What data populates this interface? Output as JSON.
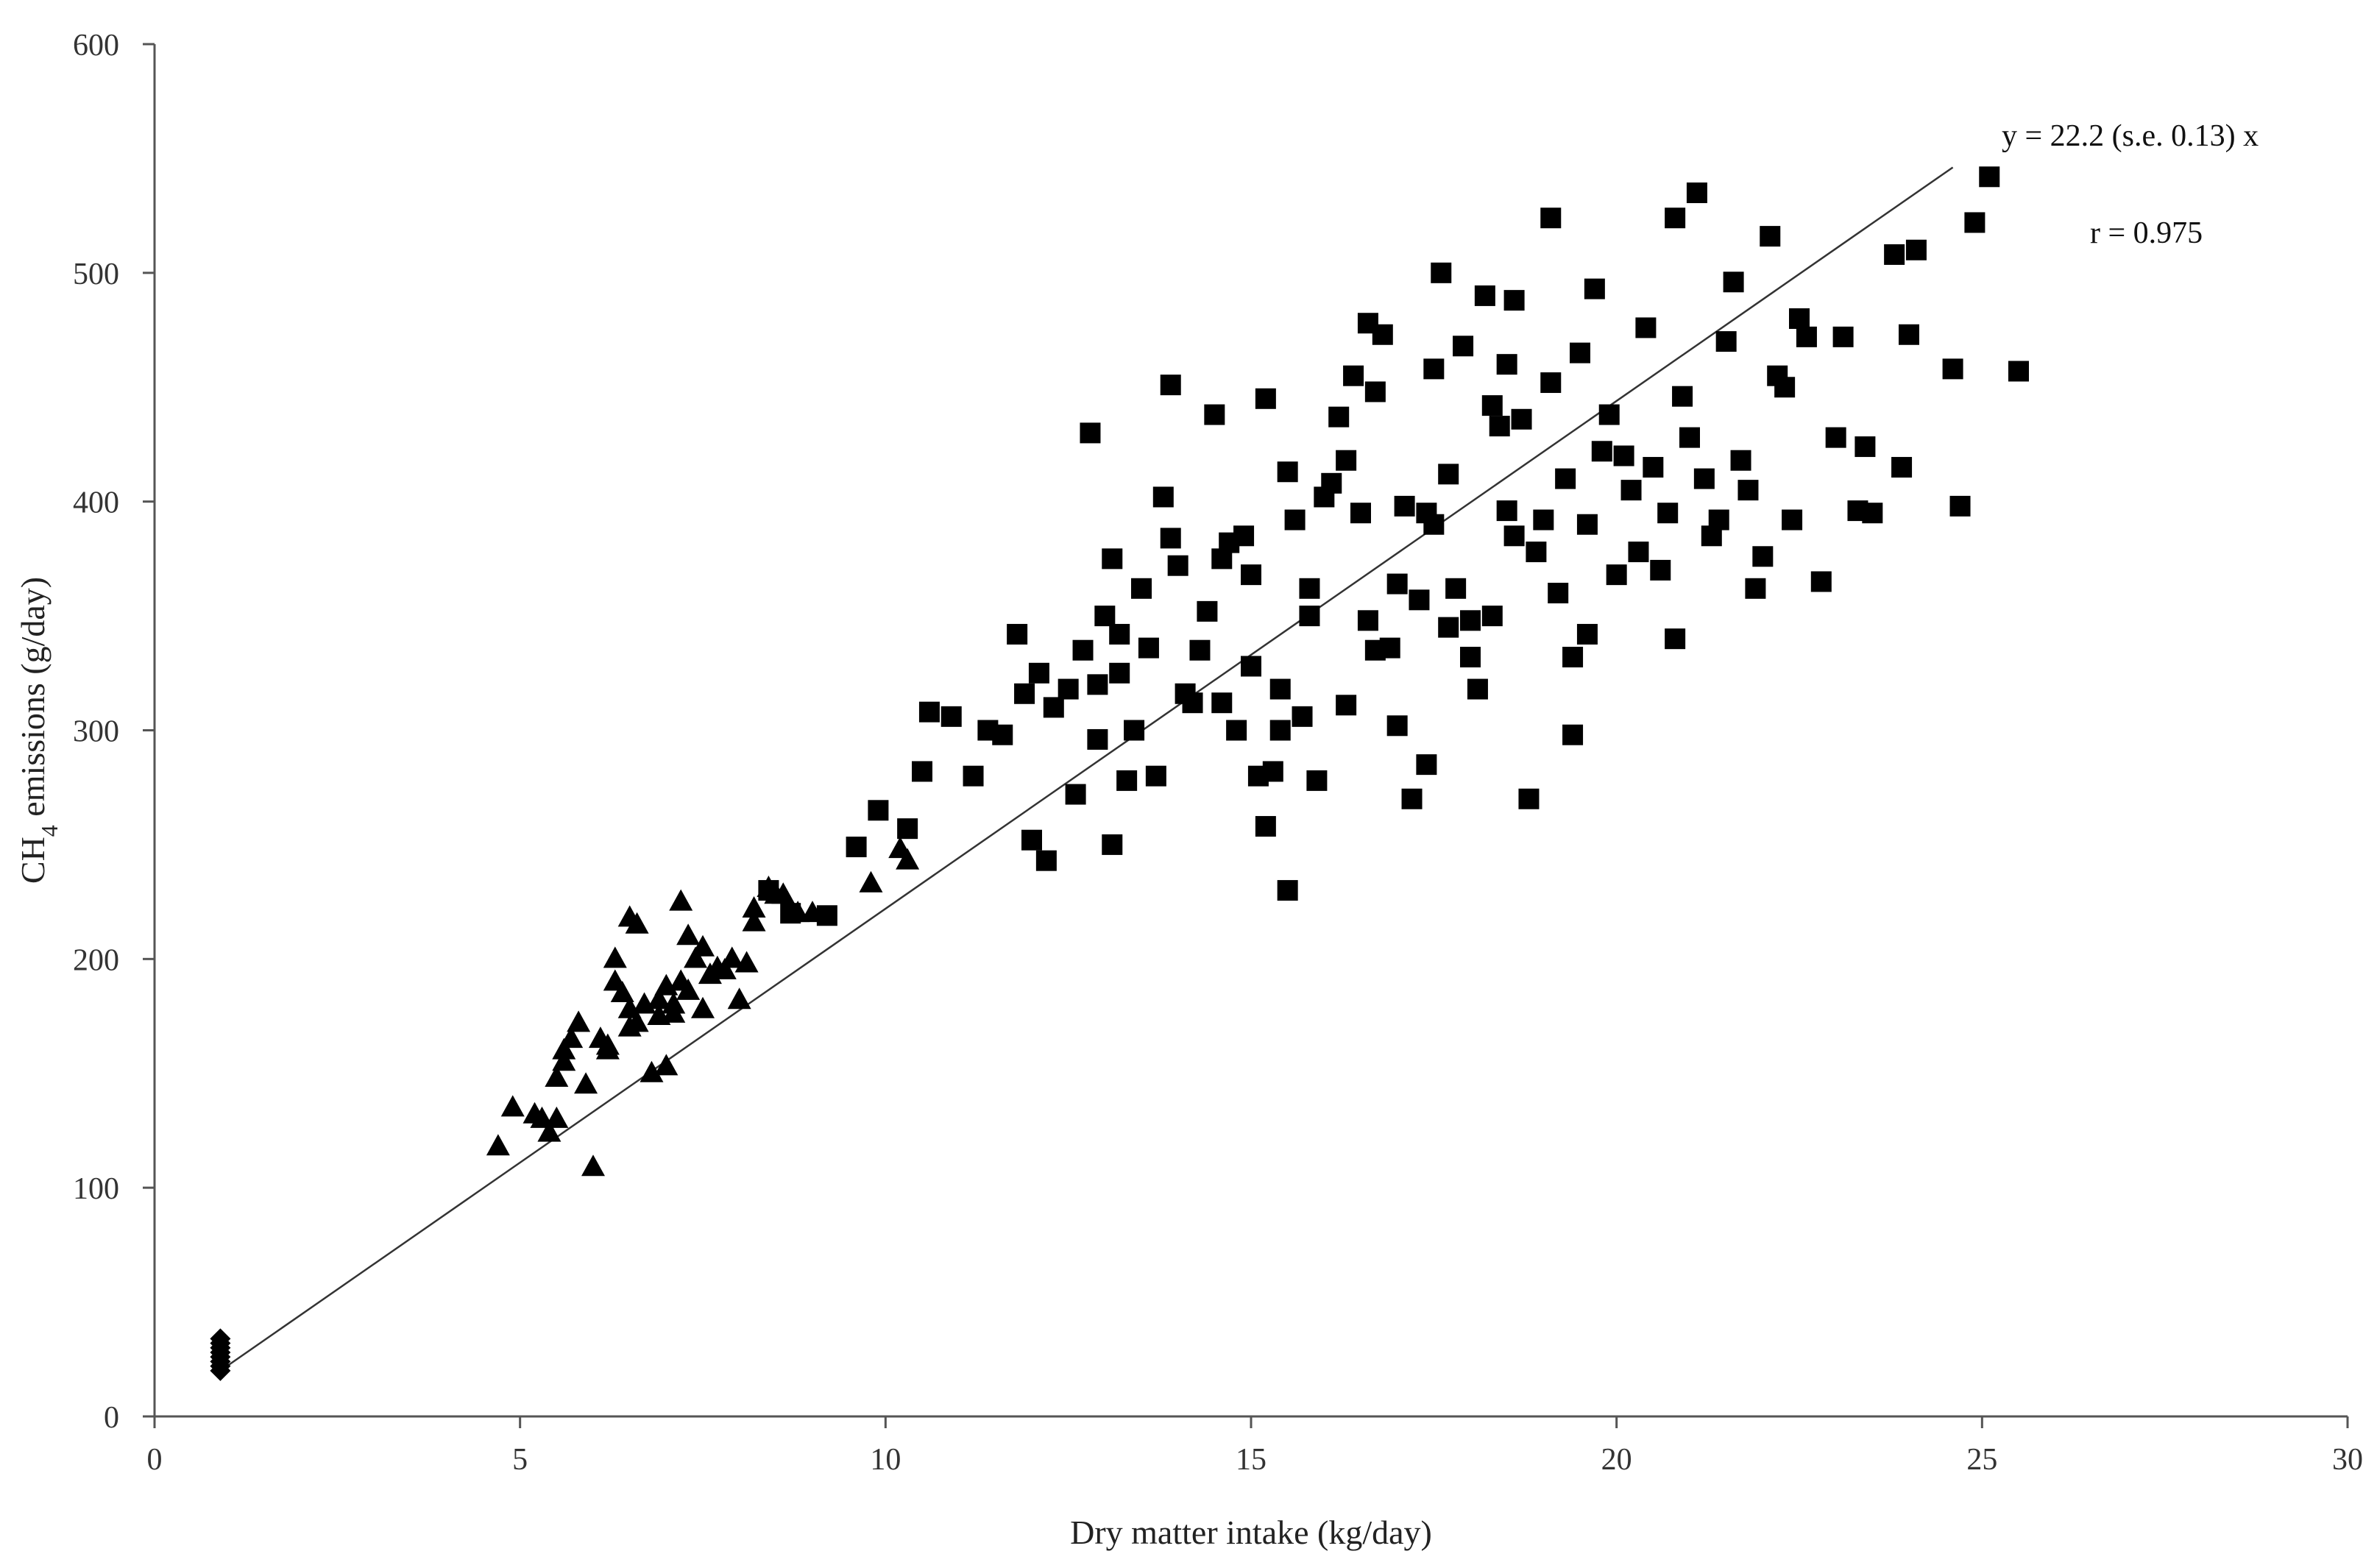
{
  "chart_data": {
    "type": "scatter",
    "xlabel": "Dry matter intake (kg/day)",
    "ylabel_parts": {
      "pre": "CH",
      "sub": "4",
      "post": " emissions (g/day)"
    },
    "xlim": [
      0,
      30
    ],
    "ylim": [
      0,
      600
    ],
    "xticks": [
      0,
      5,
      10,
      15,
      20,
      25,
      30
    ],
    "yticks": [
      0,
      100,
      200,
      300,
      400,
      500,
      600
    ],
    "grid": false,
    "legend": "none",
    "annotations": {
      "equation": "y = 22.2 (s.e. 0.13) x",
      "r": "r = 0.975"
    },
    "fit_line": {
      "slope": 22.2,
      "x_range": [
        0.9,
        24.6
      ]
    },
    "series": [
      {
        "marker": "diamond",
        "points": [
          [
            0.9,
            20
          ],
          [
            0.9,
            22
          ],
          [
            0.9,
            24
          ],
          [
            0.9,
            26
          ],
          [
            0.9,
            28
          ],
          [
            0.9,
            30
          ],
          [
            0.9,
            32
          ],
          [
            0.9,
            34
          ]
        ]
      },
      {
        "marker": "triangle",
        "points": [
          [
            4.7,
            118
          ],
          [
            4.9,
            135
          ],
          [
            5.2,
            132
          ],
          [
            5.4,
            124
          ],
          [
            5.5,
            148
          ],
          [
            5.5,
            130
          ],
          [
            5.6,
            160
          ],
          [
            5.7,
            165
          ],
          [
            5.8,
            172
          ],
          [
            5.9,
            145
          ],
          [
            6.0,
            109
          ],
          [
            6.1,
            165
          ],
          [
            6.2,
            162
          ],
          [
            6.3,
            200
          ],
          [
            6.3,
            190
          ],
          [
            6.4,
            185
          ],
          [
            6.5,
            218
          ],
          [
            6.5,
            178
          ],
          [
            6.6,
            215
          ],
          [
            6.6,
            172
          ],
          [
            6.7,
            180
          ],
          [
            6.8,
            150
          ],
          [
            6.9,
            182
          ],
          [
            7.0,
            188
          ],
          [
            7.0,
            153
          ],
          [
            7.1,
            176
          ],
          [
            7.2,
            225
          ],
          [
            7.2,
            190
          ],
          [
            7.3,
            210
          ],
          [
            7.3,
            186
          ],
          [
            7.4,
            200
          ],
          [
            7.5,
            178
          ],
          [
            7.6,
            193
          ],
          [
            7.7,
            196
          ],
          [
            7.8,
            195
          ],
          [
            7.9,
            200
          ],
          [
            8.0,
            182
          ],
          [
            8.1,
            198
          ],
          [
            8.2,
            222
          ],
          [
            8.2,
            216
          ],
          [
            8.4,
            231
          ],
          [
            8.5,
            228
          ],
          [
            8.6,
            228
          ],
          [
            8.8,
            220
          ],
          [
            9.0,
            220
          ],
          [
            9.8,
            233
          ],
          [
            10.2,
            248
          ],
          [
            10.3,
            243
          ],
          [
            6.2,
            160
          ],
          [
            6.5,
            170
          ],
          [
            6.9,
            175
          ],
          [
            7.1,
            180
          ],
          [
            7.5,
            205
          ],
          [
            5.3,
            130
          ],
          [
            5.6,
            155
          ]
        ]
      },
      {
        "marker": "square",
        "points": [
          [
            8.4,
            230
          ],
          [
            8.7,
            220
          ],
          [
            9.2,
            219
          ],
          [
            9.6,
            249
          ],
          [
            9.9,
            265
          ],
          [
            10.3,
            257
          ],
          [
            10.5,
            282
          ],
          [
            10.6,
            308
          ],
          [
            10.9,
            306
          ],
          [
            11.2,
            280
          ],
          [
            11.4,
            300
          ],
          [
            11.6,
            298
          ],
          [
            11.8,
            342
          ],
          [
            11.9,
            316
          ],
          [
            12.0,
            252
          ],
          [
            12.1,
            325
          ],
          [
            12.2,
            243
          ],
          [
            12.3,
            310
          ],
          [
            12.5,
            318
          ],
          [
            12.6,
            272
          ],
          [
            12.7,
            335
          ],
          [
            12.8,
            430
          ],
          [
            12.9,
            320
          ],
          [
            12.9,
            296
          ],
          [
            13.0,
            350
          ],
          [
            13.1,
            375
          ],
          [
            13.1,
            250
          ],
          [
            13.2,
            342
          ],
          [
            13.3,
            278
          ],
          [
            13.4,
            300
          ],
          [
            13.5,
            362
          ],
          [
            13.6,
            336
          ],
          [
            13.7,
            280
          ],
          [
            13.8,
            402
          ],
          [
            13.9,
            384
          ],
          [
            13.9,
            451
          ],
          [
            14.0,
            372
          ],
          [
            14.1,
            316
          ],
          [
            14.2,
            312
          ],
          [
            14.3,
            335
          ],
          [
            14.4,
            352
          ],
          [
            14.5,
            438
          ],
          [
            14.6,
            312
          ],
          [
            14.7,
            382
          ],
          [
            14.8,
            300
          ],
          [
            14.9,
            385
          ],
          [
            15.0,
            368
          ],
          [
            15.0,
            328
          ],
          [
            15.1,
            280
          ],
          [
            15.2,
            258
          ],
          [
            15.2,
            445
          ],
          [
            15.3,
            282
          ],
          [
            15.4,
            318
          ],
          [
            15.4,
            300
          ],
          [
            15.5,
            230
          ],
          [
            15.5,
            413
          ],
          [
            15.6,
            392
          ],
          [
            15.7,
            306
          ],
          [
            15.8,
            362
          ],
          [
            15.9,
            278
          ],
          [
            16.0,
            402
          ],
          [
            16.1,
            408
          ],
          [
            16.2,
            437
          ],
          [
            16.3,
            418
          ],
          [
            16.3,
            311
          ],
          [
            16.4,
            455
          ],
          [
            16.5,
            395
          ],
          [
            16.6,
            478
          ],
          [
            16.6,
            348
          ],
          [
            16.7,
            448
          ],
          [
            16.8,
            473
          ],
          [
            16.9,
            336
          ],
          [
            17.0,
            364
          ],
          [
            17.0,
            302
          ],
          [
            17.1,
            398
          ],
          [
            17.2,
            270
          ],
          [
            17.3,
            357
          ],
          [
            17.4,
            285
          ],
          [
            17.5,
            458
          ],
          [
            17.5,
            390
          ],
          [
            17.6,
            500
          ],
          [
            17.7,
            412
          ],
          [
            17.7,
            345
          ],
          [
            17.8,
            362
          ],
          [
            17.9,
            468
          ],
          [
            18.0,
            348
          ],
          [
            18.0,
            332
          ],
          [
            18.1,
            318
          ],
          [
            18.2,
            490
          ],
          [
            18.3,
            442
          ],
          [
            18.3,
            350
          ],
          [
            18.4,
            433
          ],
          [
            18.5,
            396
          ],
          [
            18.5,
            460
          ],
          [
            18.6,
            488
          ],
          [
            18.7,
            436
          ],
          [
            18.8,
            270
          ],
          [
            18.9,
            378
          ],
          [
            19.0,
            392
          ],
          [
            19.1,
            524
          ],
          [
            19.1,
            452
          ],
          [
            19.2,
            360
          ],
          [
            19.3,
            410
          ],
          [
            19.4,
            332
          ],
          [
            19.4,
            298
          ],
          [
            19.5,
            465
          ],
          [
            19.6,
            390
          ],
          [
            19.6,
            342
          ],
          [
            19.7,
            493
          ],
          [
            19.8,
            422
          ],
          [
            19.9,
            438
          ],
          [
            20.0,
            368
          ],
          [
            20.1,
            420
          ],
          [
            20.2,
            405
          ],
          [
            20.3,
            378
          ],
          [
            20.4,
            476
          ],
          [
            20.5,
            415
          ],
          [
            20.6,
            370
          ],
          [
            20.7,
            395
          ],
          [
            20.8,
            340
          ],
          [
            20.8,
            524
          ],
          [
            20.9,
            446
          ],
          [
            21.0,
            428
          ],
          [
            21.1,
            535
          ],
          [
            21.2,
            410
          ],
          [
            21.3,
            385
          ],
          [
            21.4,
            392
          ],
          [
            21.5,
            470
          ],
          [
            21.6,
            496
          ],
          [
            21.7,
            418
          ],
          [
            21.8,
            405
          ],
          [
            21.9,
            362
          ],
          [
            22.0,
            376
          ],
          [
            22.1,
            516
          ],
          [
            22.2,
            455
          ],
          [
            22.3,
            450
          ],
          [
            22.4,
            392
          ],
          [
            22.5,
            480
          ],
          [
            22.6,
            472
          ],
          [
            22.8,
            365
          ],
          [
            23.0,
            428
          ],
          [
            23.1,
            472
          ],
          [
            23.3,
            396
          ],
          [
            23.4,
            424
          ],
          [
            23.5,
            395
          ],
          [
            23.8,
            508
          ],
          [
            23.9,
            415
          ],
          [
            24.0,
            473
          ],
          [
            24.1,
            510
          ],
          [
            24.6,
            458
          ],
          [
            24.7,
            398
          ],
          [
            24.9,
            522
          ],
          [
            25.1,
            542
          ],
          [
            25.5,
            457
          ],
          [
            13.2,
            325
          ],
          [
            14.6,
            375
          ],
          [
            15.8,
            350
          ],
          [
            16.7,
            335
          ],
          [
            17.4,
            395
          ],
          [
            18.6,
            385
          ]
        ]
      }
    ]
  }
}
